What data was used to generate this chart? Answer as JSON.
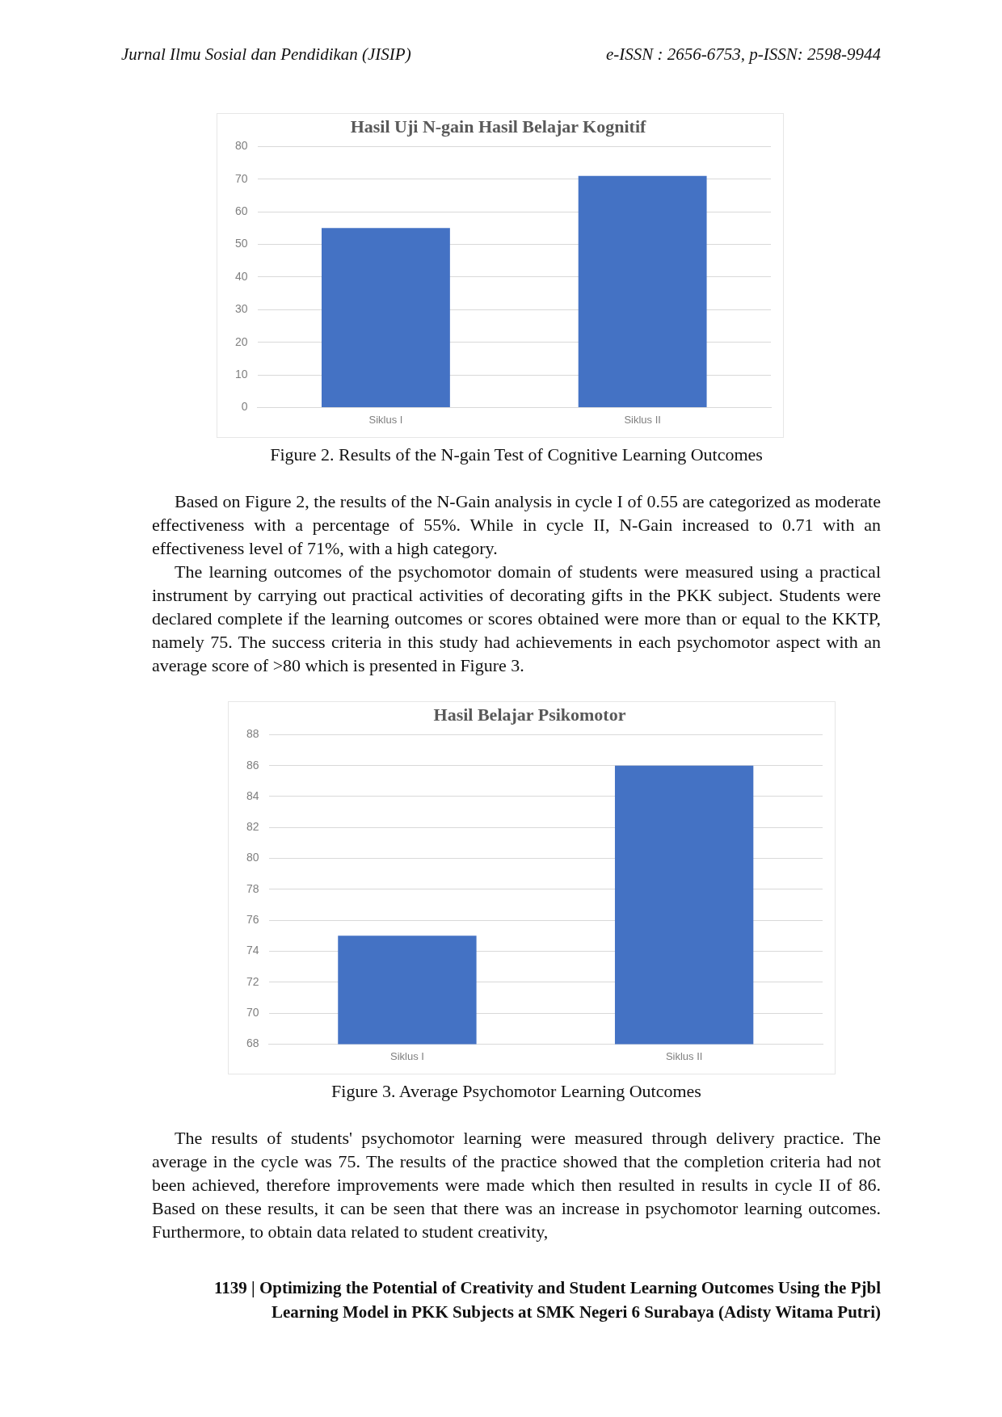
{
  "chart_data": [
    {
      "type": "bar",
      "title": "Hasil Uji N-gain Hasil Belajar Kognitif",
      "categories": [
        "Siklus I",
        "Siklus II"
      ],
      "values": [
        55,
        71
      ],
      "color": "#4472c4",
      "ylim": [
        0,
        80
      ],
      "yticks": [
        0,
        10,
        20,
        30,
        40,
        50,
        60,
        70,
        80
      ],
      "grid": "y",
      "annotations": [
        "Jurnal Ilmu Sosial dan Pendidikan (JISIP)",
        "e-ISSN : 2656-6753, p-ISSN: 2598-9944",
        "Figure 2. Results of the N-gain Test of Cognitive Learning Outcomes",
        "Based on Figure 2, the results of the N-Gain analysis in cycle I of 0.55 are categorized as moderate effectiveness with a percentage of 55%. While in cycle II, N-Gain increased to 0.71 with an effectiveness level of 71%, with a high category.",
        "The learning outcomes of the psychomotor domain of students were measured using a practical instrument by carrying out practical activities of decorating gifts in the PKK subject. Students were declared complete if the learning outcomes or scores obtained were more than or equal to the KKTP, namely 75. The success criteria in this study had achievements in each psychomotor aspect with an average score of >80 which is presented in Figure 3."
      ]
    },
    {
      "type": "bar",
      "title": "Hasil Belajar Psikomotor",
      "categories": [
        "Siklus I",
        "Siklus II"
      ],
      "values": [
        75,
        86
      ],
      "color": "#4472c4",
      "ylim": [
        68,
        88
      ],
      "yticks": [
        68,
        70,
        72,
        74,
        76,
        78,
        80,
        82,
        84,
        86,
        88
      ],
      "grid": "y",
      "annotations": [
        "Figure 3. Average Psychomotor Learning Outcomes",
        "The results of students' psychomotor learning were measured through delivery practice. The average in the cycle was 75. The results of the practice showed that the completion criteria had not been achieved, therefore improvements were made which then resulted in results in cycle II of 86. Based on these results, it can be seen that there was an increase in psychomotor learning outcomes. Furthermore, to obtain data related to student creativity,",
        "1139 | Optimizing the Potential of Creativity and Student Learning Outcomes Using the Pjbl Learning Model in PKK Subjects at SMK Negeri 6 Surabaya (Adisty Witama Putri)"
      ]
    }
  ]
}
